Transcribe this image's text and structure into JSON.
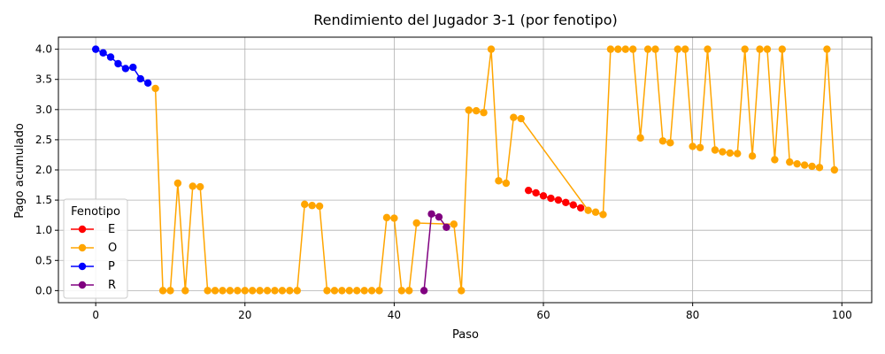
{
  "chart_data": {
    "type": "line",
    "title": "Rendimiento del Jugador 3-1 (por fenotipo)",
    "xlabel": "Paso",
    "ylabel": "Pago acumulado",
    "xlim": [
      -5,
      104
    ],
    "ylim": [
      -0.2,
      4.2
    ],
    "xticks": [
      0,
      20,
      40,
      60,
      80,
      100
    ],
    "yticks": [
      0.0,
      0.5,
      1.0,
      1.5,
      2.0,
      2.5,
      3.0,
      3.5,
      4.0
    ],
    "grid": true,
    "legend": {
      "title": "Fenotipo",
      "position": "lower-left"
    },
    "series": [
      {
        "name": "E",
        "color": "#ff0000",
        "points": [
          [
            58,
            1.66
          ],
          [
            59,
            1.62
          ],
          [
            60,
            1.57
          ],
          [
            61,
            1.53
          ],
          [
            62,
            1.5
          ],
          [
            63,
            1.46
          ],
          [
            64,
            1.42
          ],
          [
            65,
            1.37
          ]
        ]
      },
      {
        "name": "O",
        "color": "#ffa500",
        "points": [
          [
            8,
            3.35
          ],
          [
            9,
            0
          ],
          [
            10,
            0
          ],
          [
            11,
            1.78
          ],
          [
            12,
            0
          ],
          [
            13,
            1.73
          ],
          [
            14,
            1.72
          ],
          [
            15,
            0
          ],
          [
            16,
            0
          ],
          [
            17,
            0
          ],
          [
            18,
            0
          ],
          [
            19,
            0
          ],
          [
            20,
            0
          ],
          [
            21,
            0
          ],
          [
            22,
            0
          ],
          [
            23,
            0
          ],
          [
            24,
            0
          ],
          [
            25,
            0
          ],
          [
            26,
            0
          ],
          [
            27,
            0
          ],
          [
            28,
            1.43
          ],
          [
            29,
            1.41
          ],
          [
            30,
            1.4
          ],
          [
            31,
            0
          ],
          [
            32,
            0
          ],
          [
            33,
            0
          ],
          [
            34,
            0
          ],
          [
            35,
            0
          ],
          [
            36,
            0
          ],
          [
            37,
            0
          ],
          [
            38,
            0
          ],
          [
            39,
            1.21
          ],
          [
            40,
            1.2
          ],
          [
            41,
            0
          ],
          [
            42,
            0
          ],
          [
            43,
            1.12
          ],
          [
            48,
            1.1
          ],
          [
            49,
            0
          ],
          [
            50,
            2.99
          ],
          [
            51,
            2.98
          ],
          [
            52,
            2.95
          ],
          [
            53,
            4.0
          ],
          [
            54,
            1.82
          ],
          [
            55,
            1.78
          ],
          [
            56,
            2.87
          ],
          [
            57,
            2.85
          ],
          [
            66,
            1.33
          ],
          [
            67,
            1.3
          ],
          [
            68,
            1.26
          ],
          [
            69,
            4.0
          ],
          [
            70,
            4.0
          ],
          [
            71,
            4.0
          ],
          [
            72,
            4.0
          ],
          [
            73,
            2.53
          ],
          [
            74,
            4.0
          ],
          [
            75,
            4.0
          ],
          [
            76,
            2.48
          ],
          [
            77,
            2.45
          ],
          [
            78,
            4.0
          ],
          [
            79,
            4.0
          ],
          [
            80,
            2.39
          ],
          [
            81,
            2.37
          ],
          [
            82,
            4.0
          ],
          [
            83,
            2.33
          ],
          [
            84,
            2.3
          ],
          [
            85,
            2.28
          ],
          [
            86,
            2.27
          ],
          [
            87,
            4.0
          ],
          [
            88,
            2.23
          ],
          [
            89,
            4.0
          ],
          [
            90,
            4.0
          ],
          [
            91,
            2.17
          ],
          [
            92,
            4.0
          ],
          [
            93,
            2.13
          ],
          [
            94,
            2.1
          ],
          [
            95,
            2.08
          ],
          [
            96,
            2.06
          ],
          [
            97,
            2.04
          ],
          [
            98,
            4.0
          ],
          [
            99,
            2.0
          ]
        ]
      },
      {
        "name": "P",
        "color": "#0000ff",
        "points": [
          [
            0,
            4.0
          ],
          [
            1,
            3.94
          ],
          [
            2,
            3.87
          ],
          [
            3,
            3.76
          ],
          [
            4,
            3.68
          ],
          [
            5,
            3.7
          ],
          [
            6,
            3.51
          ],
          [
            7,
            3.44
          ]
        ]
      },
      {
        "name": "R",
        "color": "#800080",
        "points": [
          [
            44,
            0
          ],
          [
            45,
            1.27
          ],
          [
            46,
            1.22
          ],
          [
            47,
            1.05
          ]
        ]
      }
    ]
  }
}
